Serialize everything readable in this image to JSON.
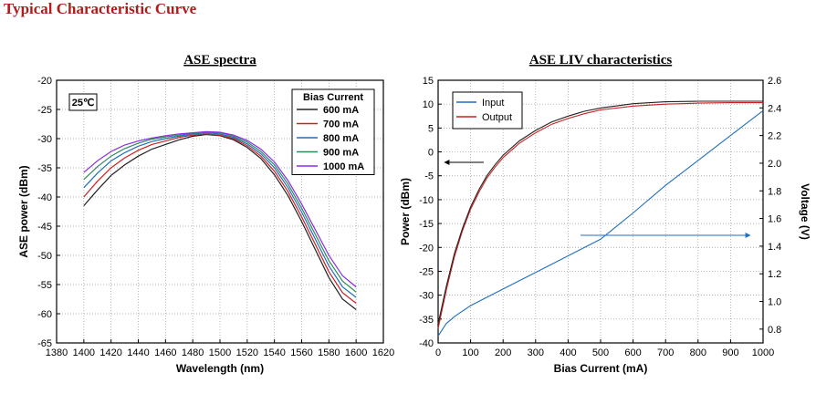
{
  "page_title": "Typical Characteristic Curve",
  "chart_data": [
    {
      "id": "ase-spectra",
      "type": "line",
      "title": "ASE spectra",
      "xlabel": "Wavelength (nm)",
      "ylabel": "ASE power (dBm)",
      "xlim": [
        1380,
        1620
      ],
      "ylim": [
        -65,
        -20
      ],
      "xticks": [
        1380,
        1400,
        1420,
        1440,
        1460,
        1480,
        1500,
        1520,
        1540,
        1560,
        1580,
        1600,
        1620
      ],
      "yticks": [
        -65,
        -60,
        -55,
        -50,
        -45,
        -40,
        -35,
        -30,
        -25,
        -20
      ],
      "grid": true,
      "annotation": "25℃",
      "legend_title": "Bias Current",
      "legend_position": "top-right",
      "x": [
        1400,
        1410,
        1420,
        1430,
        1440,
        1450,
        1460,
        1470,
        1480,
        1490,
        1500,
        1510,
        1520,
        1530,
        1540,
        1550,
        1560,
        1570,
        1580,
        1590,
        1600
      ],
      "series": [
        {
          "name": "600 mA",
          "color": "#222222",
          "values": [
            -41.5,
            -38.8,
            -36.3,
            -34.5,
            -33.0,
            -31.8,
            -31.0,
            -30.2,
            -29.6,
            -29.3,
            -29.5,
            -30.2,
            -31.5,
            -33.4,
            -36.2,
            -39.8,
            -44.2,
            -49.0,
            -53.8,
            -57.5,
            -59.3
          ]
        },
        {
          "name": "700 mA",
          "color": "#cc2020",
          "values": [
            -40.0,
            -37.3,
            -35.0,
            -33.3,
            -32.0,
            -31.0,
            -30.4,
            -29.8,
            -29.4,
            -29.2,
            -29.4,
            -30.0,
            -31.2,
            -33.0,
            -35.6,
            -39.1,
            -43.4,
            -48.1,
            -52.8,
            -56.4,
            -58.2
          ]
        },
        {
          "name": "800 mA",
          "color": "#1f6fbf",
          "values": [
            -38.4,
            -35.9,
            -33.8,
            -32.4,
            -31.3,
            -30.5,
            -30.0,
            -29.6,
            -29.2,
            -29.0,
            -29.2,
            -29.8,
            -30.9,
            -32.6,
            -35.0,
            -38.4,
            -42.6,
            -47.2,
            -51.8,
            -55.4,
            -57.2
          ]
        },
        {
          "name": "900 mA",
          "color": "#2e8b57",
          "values": [
            -37.0,
            -34.8,
            -33.0,
            -31.7,
            -30.8,
            -30.1,
            -29.7,
            -29.4,
            -29.1,
            -28.9,
            -29.0,
            -29.6,
            -30.6,
            -32.2,
            -34.5,
            -37.8,
            -41.9,
            -46.4,
            -50.9,
            -54.4,
            -56.3
          ]
        },
        {
          "name": "1000 mA",
          "color": "#8a2be2",
          "values": [
            -35.8,
            -33.8,
            -32.2,
            -31.1,
            -30.4,
            -29.9,
            -29.5,
            -29.2,
            -29.0,
            -28.8,
            -28.9,
            -29.4,
            -30.3,
            -31.8,
            -34.0,
            -37.2,
            -41.2,
            -45.6,
            -50.0,
            -53.5,
            -55.4
          ]
        }
      ]
    },
    {
      "id": "ase-liv",
      "type": "line",
      "title": "ASE LIV characteristics",
      "xlabel": "Bias Current (mA)",
      "ylabel": "Power (dBm)",
      "y2label": "Voltage (V)",
      "xlim": [
        0,
        1000
      ],
      "ylim": [
        -40,
        15
      ],
      "y2lim": [
        0.7,
        2.6
      ],
      "xticks": [
        0,
        100,
        200,
        300,
        400,
        500,
        600,
        700,
        800,
        900,
        1000
      ],
      "yticks": [
        -40,
        -35,
        -30,
        -25,
        -20,
        -15,
        -10,
        -5,
        0,
        5,
        10,
        15
      ],
      "y2ticks": [
        0.8,
        1.0,
        1.2,
        1.4,
        1.6,
        1.8,
        2.0,
        2.2,
        2.4,
        2.6
      ],
      "grid": true,
      "legend_position": "top-left",
      "x": [
        0,
        25,
        50,
        75,
        100,
        125,
        150,
        175,
        200,
        250,
        300,
        350,
        400,
        450,
        500,
        600,
        700,
        800,
        900,
        1000
      ],
      "series": [
        {
          "name": "Input",
          "color": "#1f6fbf",
          "axis": "right",
          "values": [
            0.75,
            0.84,
            0.89,
            0.93,
            0.97,
            1.0,
            1.03,
            1.06,
            1.09,
            1.15,
            1.21,
            1.27,
            1.33,
            1.39,
            1.45,
            1.64,
            1.84,
            2.02,
            2.2,
            2.38
          ]
        },
        {
          "name": "Output",
          "color": "#cc2020",
          "axis": "left",
          "values": [
            -37.0,
            -29.0,
            -22.0,
            -16.5,
            -12.0,
            -8.5,
            -5.5,
            -3.2,
            -1.2,
            1.8,
            4.0,
            5.8,
            7.0,
            8.0,
            8.8,
            9.6,
            10.0,
            10.2,
            10.3,
            10.3
          ]
        },
        {
          "name": "",
          "color": "#222222",
          "axis": "left",
          "values": [
            -36.0,
            -28.2,
            -21.3,
            -16.0,
            -11.5,
            -8.0,
            -5.0,
            -2.7,
            -0.7,
            2.3,
            4.5,
            6.3,
            7.5,
            8.5,
            9.2,
            10.1,
            10.5,
            10.6,
            10.6,
            10.6
          ]
        }
      ]
    }
  ]
}
